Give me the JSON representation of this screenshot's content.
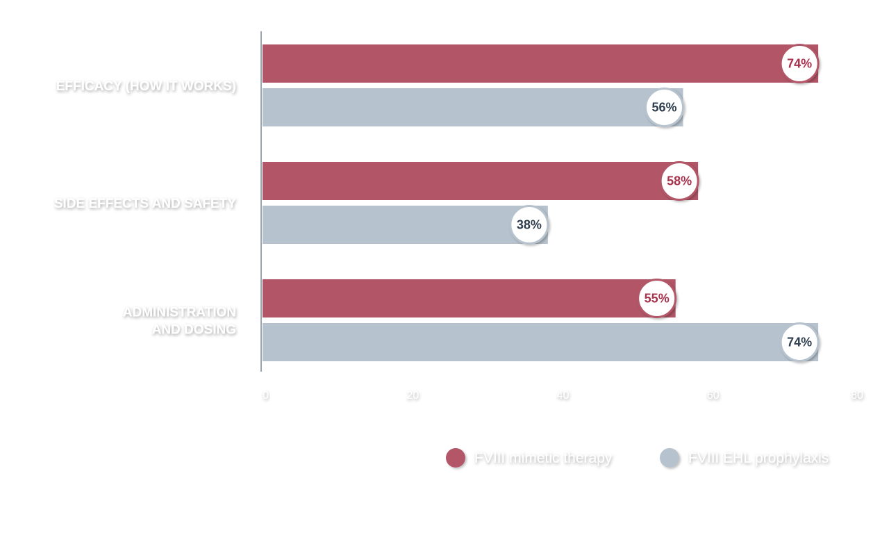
{
  "chart_data": {
    "type": "bar",
    "orientation": "horizontal",
    "categories": [
      [
        "EFFICACY (HOW IT WORKS)"
      ],
      [
        "SIDE EFFECTS AND SAFETY"
      ],
      [
        "ADMINISTRATION",
        "AND DOSING"
      ]
    ],
    "series": [
      {
        "name": "FVIII mimetic therapy",
        "values": [
          74,
          58,
          55
        ],
        "labels": [
          "74%",
          "58%",
          "55%"
        ],
        "color": "#b25667",
        "label_color": "#a8304a"
      },
      {
        "name": "FVIII EHL prophylaxis",
        "values": [
          56,
          38,
          74
        ],
        "labels": [
          "56%",
          "38%",
          "74%"
        ],
        "color": "#b6c2cd",
        "label_color": "#2f3e4e"
      }
    ],
    "xlim": [
      0,
      80
    ],
    "x_ticks": [
      "0",
      "20",
      "40",
      "60",
      "80"
    ],
    "grid": false,
    "legend_position": "bottom-right"
  }
}
